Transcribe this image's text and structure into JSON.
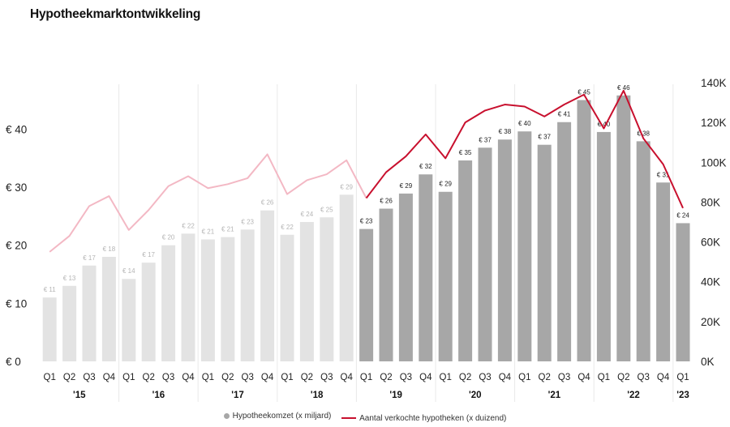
{
  "title": "Hypotheekmarktontwikkeling",
  "colors": {
    "bar_past": "#e3e3e3",
    "bar_recent": "#a7a7a7",
    "line_past": "#f3b8c4",
    "line_recent": "#c8102e",
    "label_past": "#b5b5b5",
    "label_recent": "#222222"
  },
  "legend": {
    "bars": "Hypotheekomzet (x miljard)",
    "line": "Aantal verkochte hypotheken (x duizend)"
  },
  "chart_data": {
    "type": "bar+line",
    "title": "Hypotheekmarktontwikkeling",
    "categories": [
      {
        "quarter": "Q1",
        "year": "'15"
      },
      {
        "quarter": "Q2",
        "year": "'15"
      },
      {
        "quarter": "Q3",
        "year": "'15"
      },
      {
        "quarter": "Q4",
        "year": "'15"
      },
      {
        "quarter": "Q1",
        "year": "'16"
      },
      {
        "quarter": "Q2",
        "year": "'16"
      },
      {
        "quarter": "Q3",
        "year": "'16"
      },
      {
        "quarter": "Q4",
        "year": "'16"
      },
      {
        "quarter": "Q1",
        "year": "'17"
      },
      {
        "quarter": "Q2",
        "year": "'17"
      },
      {
        "quarter": "Q3",
        "year": "'17"
      },
      {
        "quarter": "Q4",
        "year": "'17"
      },
      {
        "quarter": "Q1",
        "year": "'18"
      },
      {
        "quarter": "Q2",
        "year": "'18"
      },
      {
        "quarter": "Q3",
        "year": "'18"
      },
      {
        "quarter": "Q4",
        "year": "'18"
      },
      {
        "quarter": "Q1",
        "year": "'19"
      },
      {
        "quarter": "Q2",
        "year": "'19"
      },
      {
        "quarter": "Q3",
        "year": "'19"
      },
      {
        "quarter": "Q4",
        "year": "'19"
      },
      {
        "quarter": "Q1",
        "year": "'20"
      },
      {
        "quarter": "Q2",
        "year": "'20"
      },
      {
        "quarter": "Q3",
        "year": "'20"
      },
      {
        "quarter": "Q4",
        "year": "'20"
      },
      {
        "quarter": "Q1",
        "year": "'21"
      },
      {
        "quarter": "Q2",
        "year": "'21"
      },
      {
        "quarter": "Q3",
        "year": "'21"
      },
      {
        "quarter": "Q4",
        "year": "'21"
      },
      {
        "quarter": "Q1",
        "year": "'22"
      },
      {
        "quarter": "Q2",
        "year": "'22"
      },
      {
        "quarter": "Q3",
        "year": "'22"
      },
      {
        "quarter": "Q4",
        "year": "'22"
      },
      {
        "quarter": "Q1",
        "year": "'23"
      }
    ],
    "years": [
      "'15",
      "'16",
      "'17",
      "'18",
      "'19",
      "'20",
      "'21",
      "'22",
      "'23"
    ],
    "highlight_from": "Q1 '19",
    "series": [
      {
        "name": "Hypotheekomzet (x miljard)",
        "kind": "bar",
        "axis": "left",
        "values": [
          11,
          13,
          16.5,
          18,
          14.2,
          17,
          20,
          22,
          21,
          21.4,
          22.7,
          26,
          21.8,
          24,
          24.8,
          28.7,
          22.8,
          26.3,
          28.9,
          32.2,
          29.2,
          34.6,
          36.8,
          38.2,
          39.6,
          37.3,
          41.2,
          45,
          39.5,
          45.8,
          37.9,
          30.8,
          23.8
        ],
        "labels": [
          "€ 11",
          "€ 13",
          "€ 17",
          "€ 18",
          "€ 14",
          "€ 17",
          "€ 20",
          "€ 22",
          "€ 21",
          "€ 21",
          "€ 23",
          "€ 26",
          "€ 22",
          "€ 24",
          "€ 25",
          "€ 29",
          "€ 23",
          "€ 26",
          "€ 29",
          "€ 32",
          "€ 29",
          "€ 35",
          "€ 37",
          "€ 38",
          "€ 40",
          "€ 37",
          "€ 41",
          "€ 45",
          "€ 40",
          "€ 46",
          "€ 38",
          "€ 31",
          "€ 24"
        ]
      },
      {
        "name": "Aantal verkochte hypotheken (x duizend)",
        "kind": "line",
        "axis": "right",
        "values": [
          55,
          63,
          78,
          83,
          66,
          76,
          88,
          93,
          87,
          89,
          92,
          104,
          84,
          91,
          94,
          101,
          82,
          95,
          103,
          114,
          102,
          120,
          126,
          129,
          128,
          123,
          129,
          134,
          117,
          136,
          112,
          99,
          77
        ]
      }
    ],
    "y_left": {
      "min": 0,
      "max": 48,
      "ticks": [
        0,
        10,
        20,
        30,
        40
      ],
      "tick_labels": [
        "€ 0",
        "€ 10",
        "€ 20",
        "€ 30",
        "€ 40"
      ]
    },
    "y_right": {
      "min": 0,
      "max": 140,
      "ticks": [
        0,
        20,
        40,
        60,
        80,
        100,
        120,
        140
      ],
      "tick_labels": [
        "0K",
        "20K",
        "40K",
        "60K",
        "80K",
        "100K",
        "120K",
        "140K"
      ]
    },
    "grid": false,
    "legend_position": "bottom-center"
  }
}
